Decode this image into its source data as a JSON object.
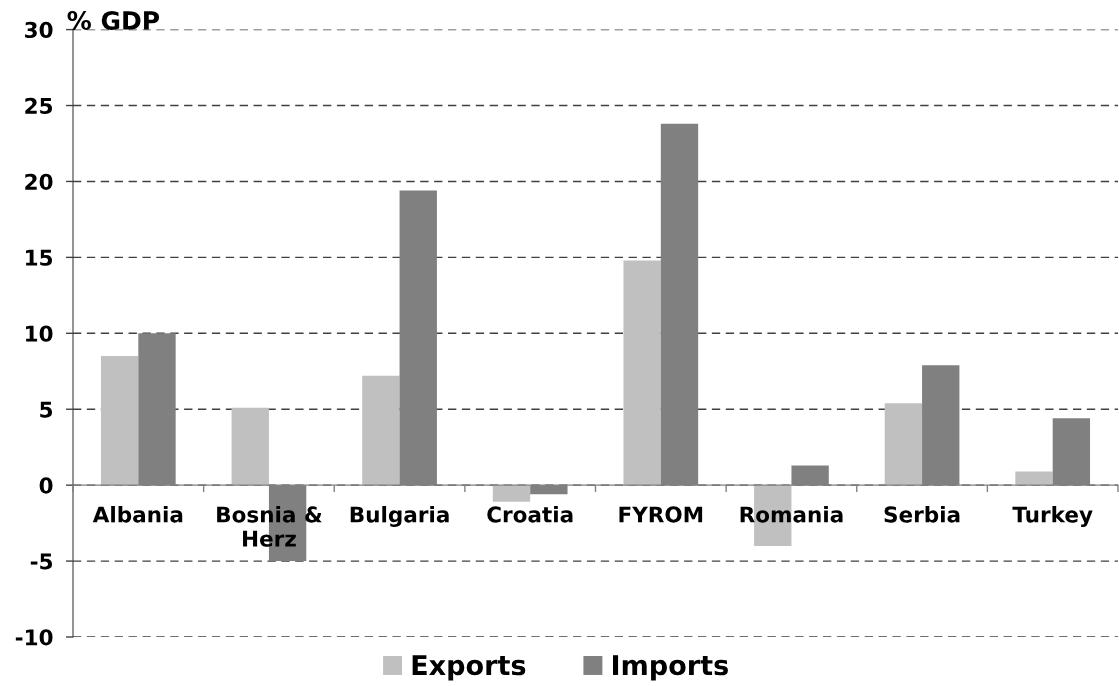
{
  "chart_data": {
    "type": "bar",
    "ylabel": "% GDP",
    "categories": [
      "Albania",
      "Bosnia &\nHerz",
      "Bulgaria",
      "Croatia",
      "FYROM",
      "Romania",
      "Serbia",
      "Turkey"
    ],
    "series": [
      {
        "name": "Exports",
        "color": "#c0c0c0",
        "values": [
          8.5,
          5.1,
          7.2,
          -1.1,
          14.8,
          -4.0,
          5.4,
          0.9
        ]
      },
      {
        "name": "Imports",
        "color": "#808080",
        "values": [
          10.0,
          -5.0,
          19.4,
          -0.6,
          23.8,
          1.3,
          7.9,
          4.4
        ]
      }
    ],
    "ylim": [
      -10,
      30
    ],
    "yticks": [
      -10,
      -5,
      0,
      5,
      10,
      15,
      20,
      25,
      30
    ],
    "grid": "y",
    "legend": "bottom"
  }
}
